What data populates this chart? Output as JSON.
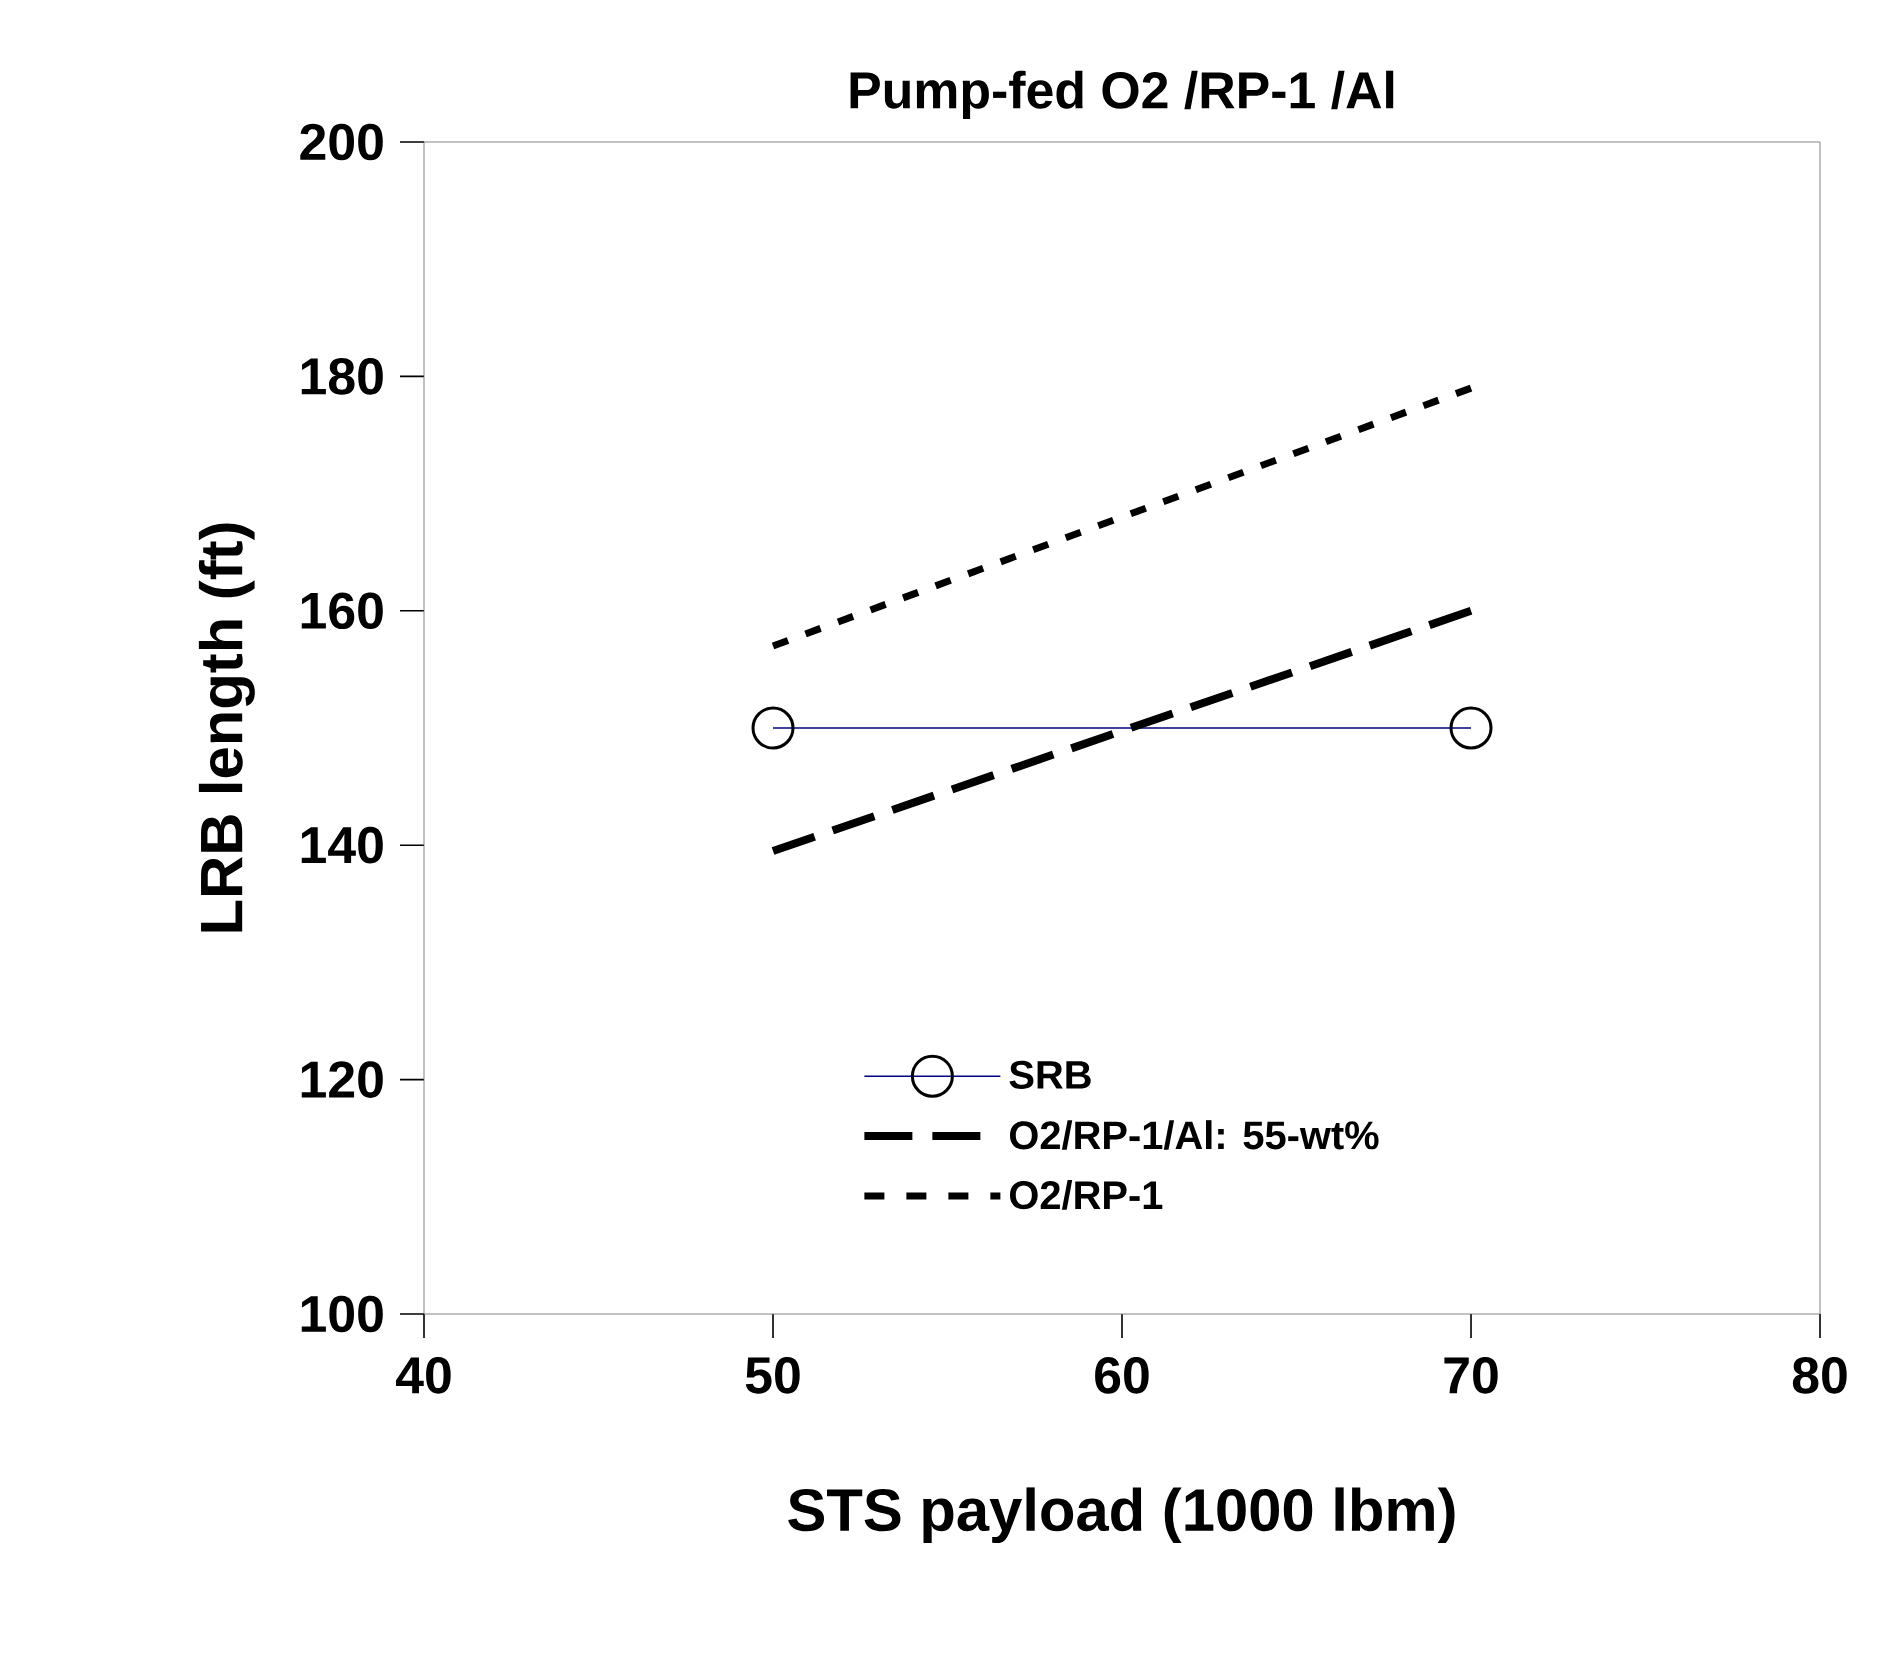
{
  "chart_data": {
    "type": "line",
    "title": "Pump-fed O2 /RP-1 /Al",
    "xlabel": "STS payload (1000 lbm)",
    "ylabel": "LRB length (ft)",
    "x": [
      50,
      70
    ],
    "xlim": [
      40,
      80
    ],
    "xticks": [
      40,
      50,
      60,
      70,
      80
    ],
    "ylim": [
      100,
      200
    ],
    "yticks": [
      100,
      120,
      140,
      160,
      180,
      200
    ],
    "legend": "bottom",
    "series": [
      {
        "name": "SRB",
        "color": "#000080",
        "values": [
          150,
          150
        ],
        "marker": "circle",
        "line_style": "solid"
      },
      {
        "name": "O2/RP-1/Al: 55-wt%",
        "color": "#000000",
        "values": [
          139.5,
          160
        ],
        "marker": "none",
        "line_style": "dashed"
      },
      {
        "name": "O2/RP-1",
        "color": "#000000",
        "values": [
          157,
          179
        ],
        "marker": "none",
        "line_style": "dotted"
      }
    ]
  }
}
